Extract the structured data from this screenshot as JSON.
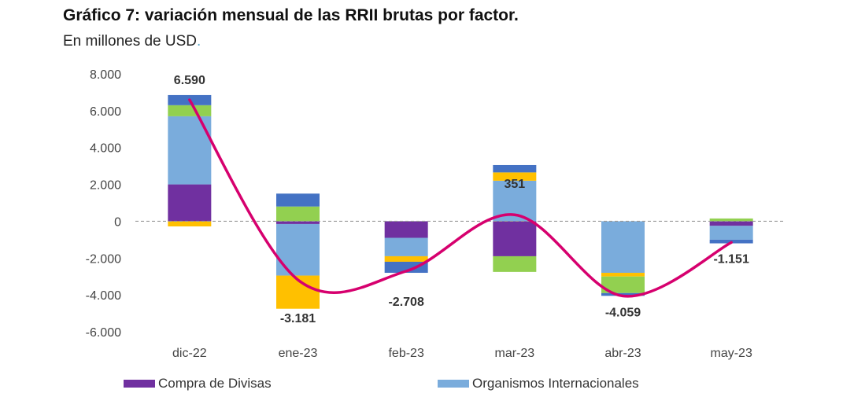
{
  "chart_data": {
    "type": "bar",
    "title": "Gráfico 7: variación mensual de las RRII brutas por factor.",
    "subtitle": "En millones de USD",
    "categories": [
      "dic-22",
      "ene-23",
      "feb-23",
      "mar-23",
      "abr-23",
      "may-23"
    ],
    "ylim": [
      -6000,
      8000
    ],
    "yticks": [
      -6000,
      -4000,
      -2000,
      0,
      2000,
      4000,
      6000,
      8000
    ],
    "ytick_labels": [
      "-6.000",
      "-4.000",
      "-2.000",
      "0",
      "2.000",
      "4.000",
      "6.000",
      "8.000"
    ],
    "stacked": true,
    "series": [
      {
        "name": "Compra de Divisas",
        "color": "#7030a0",
        "values": [
          2000,
          -150,
          -900,
          -1900,
          0,
          -250
        ]
      },
      {
        "name": "Organismos Internacionales",
        "color": "#7aacdc",
        "values": [
          3700,
          -2800,
          -1000,
          2200,
          -2800,
          -750
        ]
      },
      {
        "color": "#ffc000",
        "values": [
          -280,
          -1800,
          -300,
          450,
          -200,
          0
        ]
      },
      {
        "color": "#92d050",
        "values": [
          600,
          800,
          0,
          -850,
          -900,
          150
        ]
      },
      {
        "color": "#4472c4",
        "values": [
          550,
          700,
          -600,
          400,
          -150,
          -200
        ]
      }
    ],
    "line": {
      "color": "#d6006e",
      "values": [
        6590,
        -3181,
        -2708,
        351,
        -4059,
        -1151
      ],
      "labels": [
        "6.590",
        "-3.181",
        "-2.708",
        "351",
        "-4.059",
        "-1.151"
      ]
    },
    "zero_line": "dashed",
    "grid": false,
    "legend_position": "bottom"
  }
}
